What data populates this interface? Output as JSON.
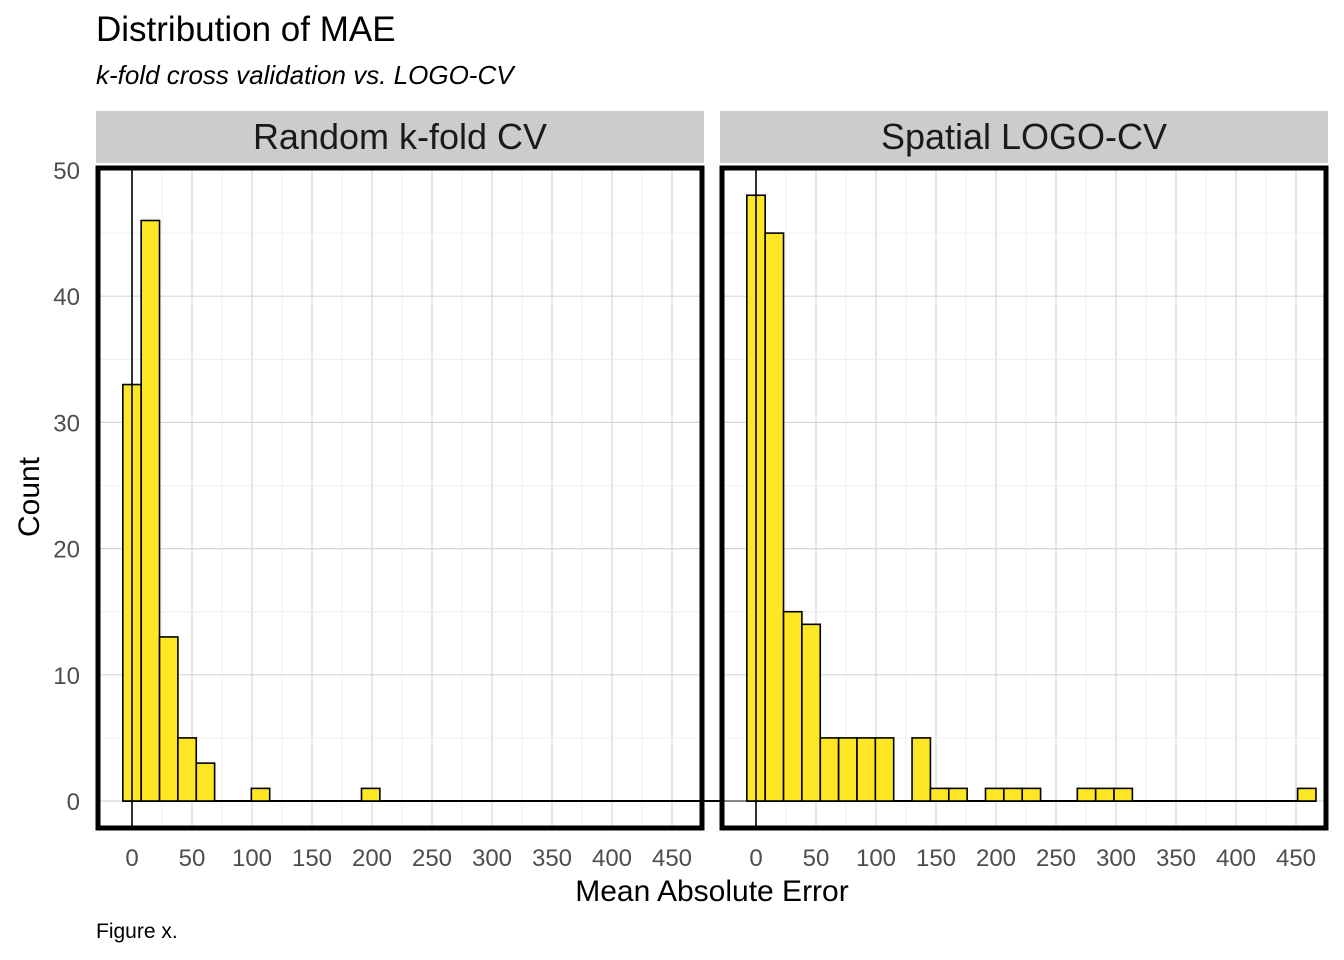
{
  "title": "Distribution of MAE",
  "subtitle": "k-fold cross validation vs. LOGO-CV",
  "caption": "Figure x.",
  "chart_data": {
    "type": "bar",
    "xlabel": "Mean Absolute Error",
    "ylabel": "Count",
    "xlim": [
      -10,
      465
    ],
    "ylim": [
      -2,
      50
    ],
    "x_ticks": [
      0,
      50,
      100,
      150,
      200,
      250,
      300,
      350,
      400,
      450
    ],
    "y_ticks": [
      0,
      10,
      20,
      30,
      40,
      50
    ],
    "bin_width": 15.3,
    "reference_line_x": 0,
    "bar_fill": "#FDE725",
    "bar_stroke": "#000000",
    "grid": true,
    "panels": [
      {
        "name": "Random k-fold CV",
        "bin_start": -7.65,
        "counts": [
          33,
          46,
          13,
          5,
          3,
          0,
          0,
          1,
          0,
          0,
          0,
          0,
          0,
          1,
          0,
          0,
          0,
          0,
          0,
          0,
          0,
          0,
          0,
          0,
          0,
          0,
          0,
          0,
          0,
          0,
          0,
          0,
          0,
          0,
          0,
          0
        ]
      },
      {
        "name": "Spatial LOGO-CV",
        "bin_start": -7.65,
        "counts": [
          48,
          45,
          15,
          14,
          5,
          5,
          5,
          5,
          0,
          5,
          1,
          1,
          0,
          1,
          1,
          1,
          0,
          0,
          1,
          1,
          1,
          0,
          0,
          0,
          0,
          0,
          0,
          0,
          0,
          0,
          1
        ]
      }
    ]
  }
}
